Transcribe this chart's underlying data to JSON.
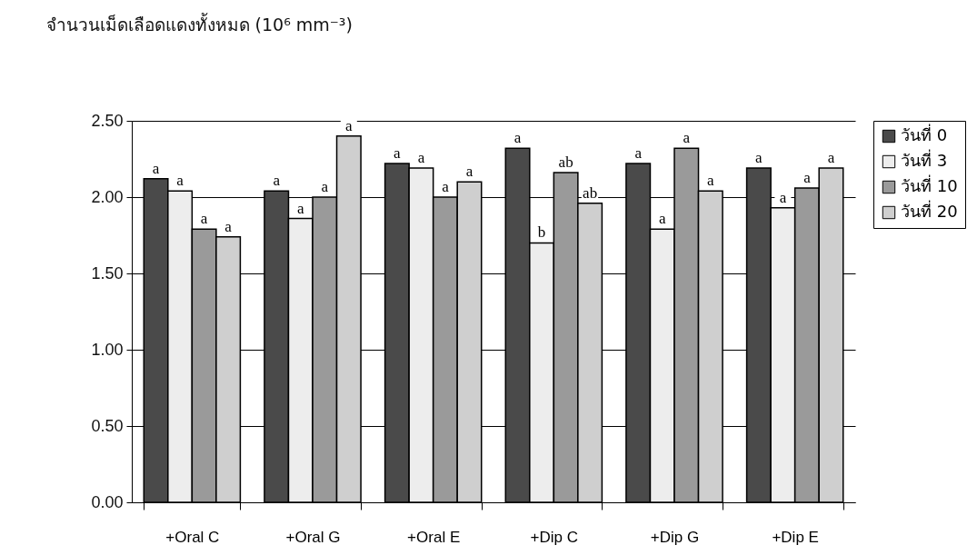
{
  "chart_data": {
    "type": "bar",
    "ylabel": "จำนวนเม็ดเลือดแดงทั้งหมด (10⁶ mm⁻³)",
    "categories": [
      "+Oral C",
      "+Oral G",
      "+Oral E",
      "+Dip C",
      "+Dip G",
      "+Dip E"
    ],
    "series": [
      {
        "name": "วันที่ 0",
        "color": "#4a4a4a",
        "values": [
          2.12,
          2.04,
          2.22,
          2.32,
          2.22,
          2.19
        ],
        "value_labels": [
          "a",
          "a",
          "a",
          "a",
          "a",
          "a"
        ]
      },
      {
        "name": "วันที่ 3",
        "color": "#ededed",
        "values": [
          2.04,
          1.86,
          2.19,
          1.7,
          1.79,
          1.93
        ],
        "value_labels": [
          "a",
          "a",
          "a",
          "b",
          "a",
          "a"
        ]
      },
      {
        "name": "วันที่ 10",
        "color": "#9a9a9a",
        "values": [
          1.79,
          2.0,
          2.0,
          2.16,
          2.32,
          2.06
        ],
        "value_labels": [
          "a",
          "a",
          "a",
          "ab",
          "a",
          "a"
        ]
      },
      {
        "name": "วันที่ 20",
        "color": "#cfcfcf",
        "values": [
          1.74,
          2.4,
          2.1,
          1.96,
          2.04,
          2.19
        ],
        "value_labels": [
          "a",
          "a",
          "a",
          "ab",
          "a",
          "a"
        ]
      }
    ],
    "ylim": [
      0,
      2.5
    ],
    "yticks": [
      {
        "value": 0,
        "label": "0.00"
      },
      {
        "value": 0.5,
        "label": "0.50"
      },
      {
        "value": 1,
        "label": "1.00"
      },
      {
        "value": 1.5,
        "label": "1.50"
      },
      {
        "value": 2,
        "label": "2.00"
      },
      {
        "value": 2.5,
        "label": "2.50"
      }
    ],
    "grid": "y",
    "legend": "right"
  }
}
